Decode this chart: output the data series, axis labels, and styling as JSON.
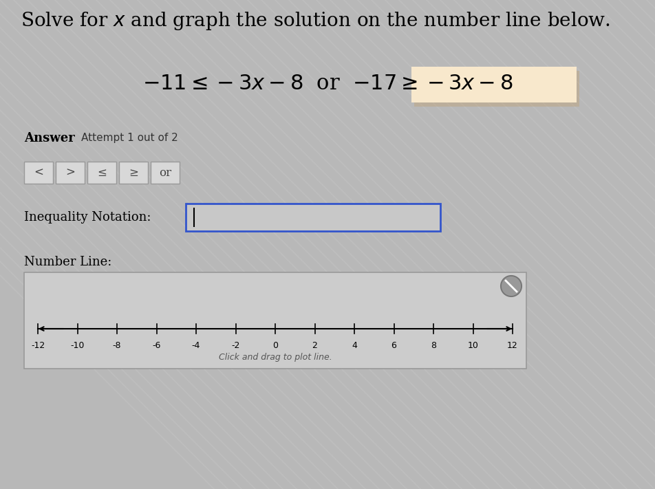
{
  "title": "Solve for $x$ and graph the solution on the number line below.",
  "answer_label": "Answer",
  "attempt_label": "Attempt 1 out of 2",
  "buttons": [
    "<",
    ">",
    "≤",
    "≥",
    "or"
  ],
  "inequality_label": "Inequality Notation:",
  "number_line_label": "Number Line:",
  "click_label": "Click and drag to plot line.",
  "number_line_min": -12,
  "number_line_max": 12,
  "number_line_ticks": [
    -12,
    -10,
    -8,
    -6,
    -4,
    -2,
    0,
    2,
    4,
    6,
    8,
    10,
    12
  ],
  "bg_color": "#b8b8b8",
  "number_line_bg": "#cccccc",
  "button_bg": "#d8d8d8",
  "input_box_border": "#3355cc",
  "input_box_bg": "#c8c8c8",
  "highlight_color": "#f8e8cc",
  "eq_left": "$-11 \\leq -3x - 8$  or  $-17 \\geq -3x - 8$",
  "title_fontsize": 20,
  "eq_fontsize": 22
}
